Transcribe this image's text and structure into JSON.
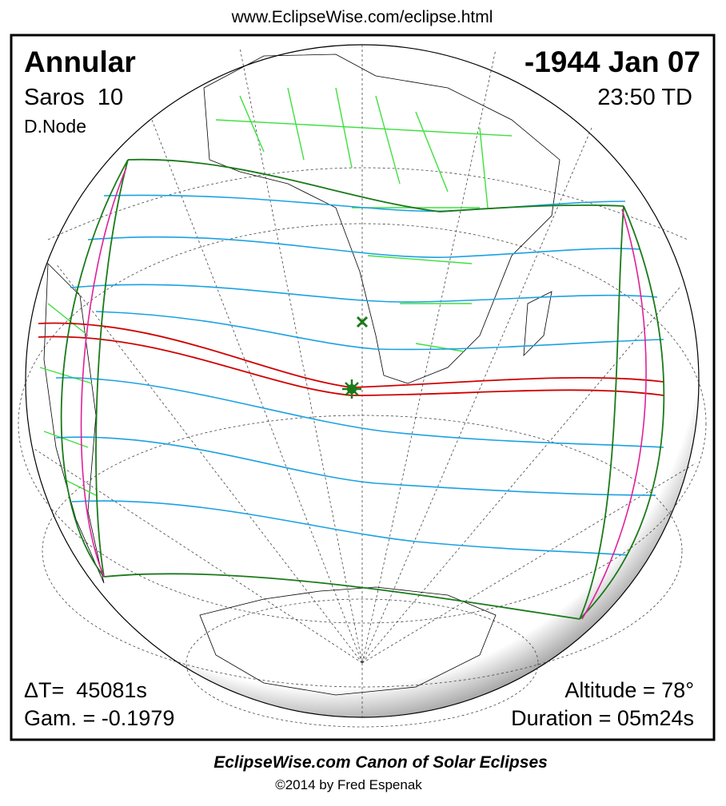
{
  "header": {
    "url": "www.EclipseWise.com/eclipse.html"
  },
  "eclipse": {
    "type": "Annular",
    "date": "-1944 Jan 07",
    "saros": "Saros  10",
    "time": "23:50 TD",
    "node": "D.Node",
    "delta_t": "ΔT=  45081s",
    "gamma": "Gam. = -0.1979",
    "altitude": "Altitude = 78°",
    "duration": "Duration = 05m24s"
  },
  "footer": {
    "title": "EclipseWise.com Canon of Solar Eclipses",
    "copyright": "©2014 by Fred Espenak"
  }
}
